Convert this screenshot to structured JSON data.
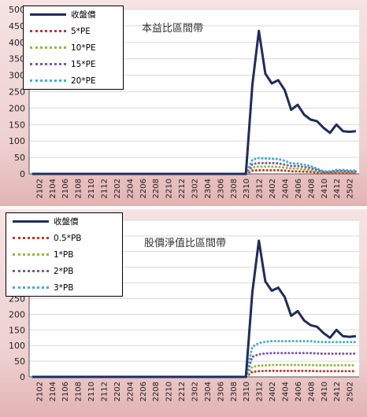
{
  "chart_data": [
    {
      "type": "line",
      "title": "本益比區間帶",
      "xlabel": "",
      "ylabel": "",
      "ylim": [
        0,
        500
      ],
      "yticks": [
        "0",
        "50",
        "100",
        "150",
        "200",
        "250",
        "300",
        "350",
        "400",
        "450",
        "500"
      ],
      "xtick_labels": [
        "2102",
        "2104",
        "2106",
        "2108",
        "2110",
        "2112",
        "2202",
        "2204",
        "2206",
        "2208",
        "2210",
        "2212",
        "2302",
        "2304",
        "2306",
        "2308",
        "2310",
        "2312",
        "2402",
        "2404",
        "2406",
        "2408",
        "2410",
        "2412",
        "2502"
      ],
      "x": [
        "2101",
        "2102",
        "2103",
        "2104",
        "2105",
        "2106",
        "2107",
        "2108",
        "2109",
        "2110",
        "2111",
        "2112",
        "2201",
        "2202",
        "2203",
        "2204",
        "2205",
        "2206",
        "2207",
        "2208",
        "2209",
        "2210",
        "2211",
        "2212",
        "2301",
        "2302",
        "2303",
        "2304",
        "2305",
        "2306",
        "2307",
        "2308",
        "2309",
        "2310",
        "2311",
        "2312",
        "2401",
        "2402",
        "2403",
        "2404",
        "2405",
        "2406",
        "2407",
        "2408",
        "2409",
        "2410",
        "2411",
        "2412",
        "2501",
        "2502",
        "2503"
      ],
      "grid": "horizontal",
      "legend_position": "top-left",
      "series": [
        {
          "name": "收盤價",
          "color": "#1f2d5c",
          "style": "solid",
          "values": [
            0,
            0,
            0,
            0,
            0,
            0,
            0,
            0,
            0,
            0,
            0,
            0,
            0,
            0,
            0,
            0,
            0,
            0,
            0,
            0,
            0,
            0,
            0,
            0,
            0,
            0,
            0,
            0,
            0,
            0,
            0,
            0,
            0,
            0,
            270,
            435,
            305,
            275,
            285,
            255,
            195,
            210,
            180,
            165,
            160,
            140,
            125,
            150,
            130,
            128,
            130
          ]
        },
        {
          "name": "5*PE",
          "color": "#c0392b",
          "style": "dotted",
          "values": [
            0,
            0,
            0,
            0,
            0,
            0,
            0,
            0,
            0,
            0,
            0,
            0,
            0,
            0,
            0,
            0,
            0,
            0,
            0,
            0,
            0,
            0,
            0,
            0,
            0,
            0,
            0,
            0,
            0,
            0,
            0,
            0,
            0,
            0,
            10,
            11,
            11,
            11,
            11,
            10,
            8,
            8,
            7,
            6,
            4,
            2,
            2,
            3,
            3,
            2,
            2
          ]
        },
        {
          "name": "10*PE",
          "color": "#8fbc3f",
          "style": "dotted",
          "values": [
            0,
            0,
            0,
            0,
            0,
            0,
            0,
            0,
            0,
            0,
            0,
            0,
            0,
            0,
            0,
            0,
            0,
            0,
            0,
            0,
            0,
            0,
            0,
            0,
            0,
            0,
            0,
            0,
            0,
            0,
            0,
            0,
            0,
            0,
            20,
            22,
            22,
            22,
            21,
            19,
            16,
            16,
            14,
            12,
            8,
            4,
            4,
            6,
            6,
            5,
            5
          ]
        },
        {
          "name": "15*PE",
          "color": "#7e57a8",
          "style": "dotted",
          "values": [
            0,
            0,
            0,
            0,
            0,
            0,
            0,
            0,
            0,
            0,
            0,
            0,
            0,
            0,
            0,
            0,
            0,
            0,
            0,
            0,
            0,
            0,
            0,
            0,
            0,
            0,
            0,
            0,
            0,
            0,
            0,
            0,
            0,
            0,
            30,
            33,
            33,
            33,
            32,
            28,
            24,
            24,
            21,
            18,
            12,
            6,
            6,
            9,
            9,
            7,
            7
          ]
        },
        {
          "name": "20*PE",
          "color": "#3fb0c8",
          "style": "dotted",
          "values": [
            0,
            0,
            0,
            0,
            0,
            0,
            0,
            0,
            0,
            0,
            0,
            0,
            0,
            0,
            0,
            0,
            0,
            0,
            0,
            0,
            0,
            0,
            0,
            0,
            0,
            0,
            0,
            0,
            0,
            0,
            0,
            0,
            0,
            0,
            43,
            48,
            47,
            46,
            45,
            40,
            32,
            31,
            28,
            24,
            16,
            8,
            8,
            12,
            12,
            10,
            10
          ]
        }
      ]
    },
    {
      "type": "line",
      "title": "股價淨值比區間帶",
      "xlabel": "",
      "ylabel": "",
      "ylim": [
        0,
        500
      ],
      "yticks": [
        "0",
        "50",
        "100",
        "150",
        "200",
        "250",
        "300",
        "350",
        "400",
        "450",
        "500"
      ],
      "xtick_labels": [
        "2102",
        "2104",
        "2106",
        "2108",
        "2110",
        "2112",
        "2202",
        "2204",
        "2206",
        "2208",
        "2210",
        "2212",
        "2302",
        "2304",
        "2306",
        "2308",
        "2310",
        "2312",
        "2402",
        "2404",
        "2406",
        "2408",
        "2410",
        "2412",
        "2502"
      ],
      "x": [
        "2101",
        "2102",
        "2103",
        "2104",
        "2105",
        "2106",
        "2107",
        "2108",
        "2109",
        "2110",
        "2111",
        "2112",
        "2201",
        "2202",
        "2203",
        "2204",
        "2205",
        "2206",
        "2207",
        "2208",
        "2209",
        "2210",
        "2211",
        "2212",
        "2301",
        "2302",
        "2303",
        "2304",
        "2305",
        "2306",
        "2307",
        "2308",
        "2309",
        "2310",
        "2311",
        "2312",
        "2401",
        "2402",
        "2403",
        "2404",
        "2405",
        "2406",
        "2407",
        "2408",
        "2409",
        "2410",
        "2411",
        "2412",
        "2501",
        "2502",
        "2503"
      ],
      "grid": "horizontal",
      "legend_position": "top-left",
      "series": [
        {
          "name": "收盤價",
          "color": "#1f2d5c",
          "style": "solid",
          "values": [
            0,
            0,
            0,
            0,
            0,
            0,
            0,
            0,
            0,
            0,
            0,
            0,
            0,
            0,
            0,
            0,
            0,
            0,
            0,
            0,
            0,
            0,
            0,
            0,
            0,
            0,
            0,
            0,
            0,
            0,
            0,
            0,
            0,
            0,
            270,
            435,
            305,
            275,
            285,
            255,
            195,
            210,
            180,
            165,
            160,
            140,
            125,
            150,
            130,
            128,
            130
          ]
        },
        {
          "name": "0.5*PB",
          "color": "#c0392b",
          "style": "dotted",
          "values": [
            0,
            0,
            0,
            0,
            0,
            0,
            0,
            0,
            0,
            0,
            0,
            0,
            0,
            0,
            0,
            0,
            0,
            0,
            0,
            0,
            0,
            0,
            0,
            0,
            0,
            0,
            0,
            0,
            0,
            0,
            0,
            0,
            0,
            0,
            16,
            18,
            19,
            19,
            19,
            19,
            19,
            19,
            19,
            19,
            18,
            18,
            18,
            18,
            18,
            18,
            18
          ]
        },
        {
          "name": "1*PB",
          "color": "#8fbc3f",
          "style": "dotted",
          "values": [
            0,
            0,
            0,
            0,
            0,
            0,
            0,
            0,
            0,
            0,
            0,
            0,
            0,
            0,
            0,
            0,
            0,
            0,
            0,
            0,
            0,
            0,
            0,
            0,
            0,
            0,
            0,
            0,
            0,
            0,
            0,
            0,
            0,
            0,
            32,
            36,
            37,
            38,
            38,
            38,
            38,
            38,
            38,
            38,
            37,
            37,
            37,
            37,
            37,
            37,
            37
          ]
        },
        {
          "name": "2*PB",
          "color": "#7e57a8",
          "style": "dotted",
          "values": [
            0,
            0,
            0,
            0,
            0,
            0,
            0,
            0,
            0,
            0,
            0,
            0,
            0,
            0,
            0,
            0,
            0,
            0,
            0,
            0,
            0,
            0,
            0,
            0,
            0,
            0,
            0,
            0,
            0,
            0,
            0,
            0,
            0,
            0,
            64,
            72,
            75,
            76,
            76,
            76,
            76,
            76,
            76,
            76,
            75,
            74,
            74,
            74,
            74,
            74,
            74
          ]
        },
        {
          "name": "3*PB",
          "color": "#3fb0c8",
          "style": "dotted",
          "values": [
            0,
            0,
            0,
            0,
            0,
            0,
            0,
            0,
            0,
            0,
            0,
            0,
            0,
            0,
            0,
            0,
            0,
            0,
            0,
            0,
            0,
            0,
            0,
            0,
            0,
            0,
            0,
            0,
            0,
            0,
            0,
            0,
            0,
            0,
            96,
            108,
            112,
            114,
            114,
            114,
            114,
            114,
            114,
            114,
            112,
            111,
            111,
            111,
            111,
            111,
            111
          ]
        }
      ]
    }
  ]
}
